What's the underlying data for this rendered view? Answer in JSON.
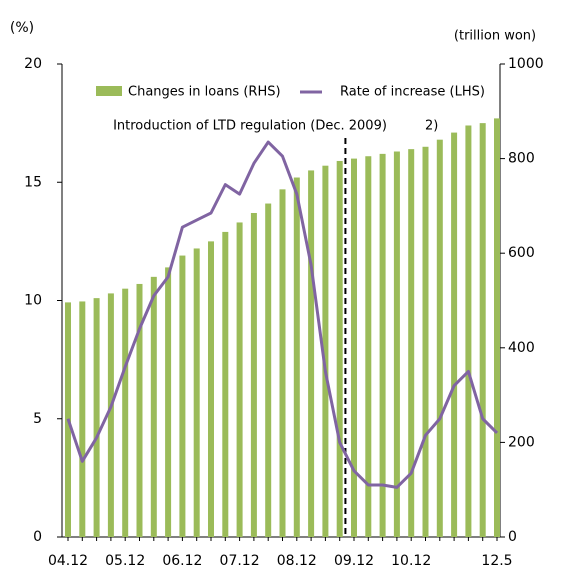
{
  "chart_data": {
    "type": "bar_line",
    "y_label": "(%)",
    "y2_label": "(trillion won)",
    "annotation": "Introduction of LTD regulation (Dec. 2009)",
    "footnote": "2)",
    "categories": [
      "04.12",
      null,
      null,
      null,
      "05.12",
      null,
      null,
      null,
      "06.12",
      null,
      null,
      null,
      "07.12",
      null,
      null,
      null,
      "08.12",
      null,
      null,
      null,
      "09.12",
      null,
      null,
      null,
      "10.12",
      null,
      null,
      null,
      null,
      null,
      "12.5"
    ],
    "series": [
      {
        "name": "Changes in loans (RHS)",
        "color": "#9bbb59",
        "axis": "y2",
        "kind": "bar",
        "values": [
          496,
          498,
          505,
          515,
          525,
          535,
          550,
          570,
          595,
          610,
          625,
          645,
          665,
          685,
          705,
          735,
          760,
          775,
          785,
          795,
          800,
          805,
          810,
          815,
          820,
          825,
          840,
          855,
          870,
          875,
          885
        ]
      },
      {
        "name": "Rate of increase (LHS)",
        "color": "#8064a2",
        "axis": "y",
        "kind": "line",
        "values": [
          5,
          3.2,
          4.2,
          5.5,
          7.2,
          8.8,
          10.2,
          11,
          13.1,
          13.4,
          13.7,
          14.9,
          14.5,
          15.8,
          16.7,
          16.1,
          14.5,
          11.5,
          7,
          4,
          2.8,
          2.2,
          2.2,
          2.1,
          2.7,
          4.3,
          5,
          6.4,
          7,
          5,
          4.4
        ]
      }
    ],
    "ylim": [
      0,
      20
    ],
    "yticks": [
      0,
      5,
      10,
      15,
      20
    ],
    "y2lim": [
      0,
      1000
    ],
    "y2ticks": [
      0,
      200,
      400,
      600,
      800,
      1000
    ],
    "legend": "top"
  }
}
